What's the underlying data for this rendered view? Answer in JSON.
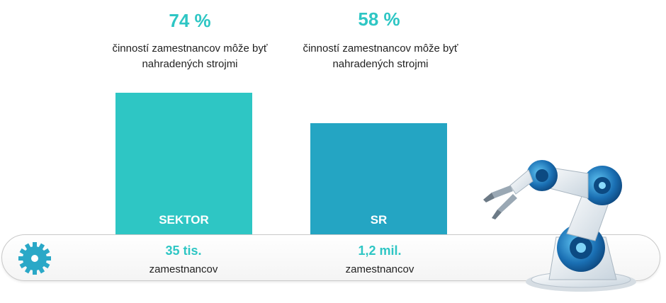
{
  "chart_data": {
    "type": "bar",
    "categories": [
      "SEKTOR",
      "SR"
    ],
    "values": [
      74,
      58
    ],
    "value_labels": [
      "74 %",
      "58 %"
    ],
    "caption": "činností zamestnancov môže byť nahradených strojmi",
    "caption_lines": [
      "činností zamestnancov môže byť",
      "nahradených strojmi"
    ],
    "employee_counts": [
      "35 tis.",
      "1,2 mil."
    ],
    "employee_unit": "zamestnancov",
    "ylim": [
      0,
      100
    ],
    "colors": [
      "#2ec6c4",
      "#24a5c3"
    ]
  },
  "icons": [
    "gear-icon",
    "robot-arm-icon"
  ]
}
